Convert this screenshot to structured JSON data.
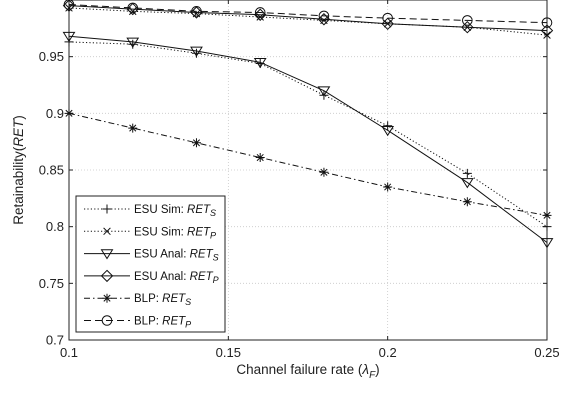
{
  "chart_data": {
    "type": "line",
    "xlabel": {
      "text": "Channel failure rate (",
      "sym": "λ",
      "sub": "F",
      "close": ")"
    },
    "ylabel": {
      "text": "Retainability(",
      "em": "RET",
      "close": ")"
    },
    "xlim": [
      0.1,
      0.25
    ],
    "ylim": [
      0.7,
      1.0
    ],
    "xticks": [
      0.1,
      0.15,
      0.2,
      0.25
    ],
    "xtick_labels": [
      "0.1",
      "0.15",
      "0.2",
      "0.25"
    ],
    "yticks": [
      0.7,
      0.75,
      0.8,
      0.85,
      0.9,
      0.95
    ],
    "ytick_labels": [
      "0.7",
      "0.75",
      "0.8",
      "0.85",
      "0.9",
      "0.95"
    ],
    "grid": true,
    "legend_position": "bottom-left",
    "series": [
      {
        "name": "ESU Sim: ",
        "em": "RET",
        "sub": "S",
        "marker": "plus",
        "dash": "1.2,2.2",
        "x": [
          0.1,
          0.12,
          0.14,
          0.16,
          0.18,
          0.2,
          0.225,
          0.25
        ],
        "y": [
          0.963,
          0.961,
          0.953,
          0.944,
          0.916,
          0.889,
          0.847,
          0.8
        ]
      },
      {
        "name": "ESU Sim: ",
        "em": "RET",
        "sub": "P",
        "marker": "x",
        "dash": "1.2,2.2",
        "x": [
          0.1,
          0.12,
          0.14,
          0.16,
          0.18,
          0.2,
          0.225,
          0.25
        ],
        "y": [
          0.993,
          0.99,
          0.988,
          0.985,
          0.982,
          0.979,
          0.976,
          0.969
        ]
      },
      {
        "name": "ESU Anal: ",
        "em": "RET",
        "sub": "S",
        "marker": "triangle-down",
        "dash": "",
        "x": [
          0.1,
          0.12,
          0.14,
          0.16,
          0.18,
          0.2,
          0.225,
          0.25
        ],
        "y": [
          0.968,
          0.963,
          0.955,
          0.945,
          0.92,
          0.885,
          0.839,
          0.786
        ]
      },
      {
        "name": "ESU Anal: ",
        "em": "RET",
        "sub": "P",
        "marker": "diamond",
        "dash": "",
        "x": [
          0.1,
          0.12,
          0.14,
          0.16,
          0.18,
          0.2,
          0.225,
          0.25
        ],
        "y": [
          0.995,
          0.992,
          0.989,
          0.987,
          0.983,
          0.979,
          0.976,
          0.973
        ]
      },
      {
        "name": "BLP: ",
        "em": "RET",
        "sub": "S",
        "marker": "asterisk",
        "dash": "6,3,1.5,3",
        "x": [
          0.1,
          0.12,
          0.14,
          0.16,
          0.18,
          0.2,
          0.225,
          0.25
        ],
        "y": [
          0.9,
          0.887,
          0.874,
          0.861,
          0.848,
          0.835,
          0.822,
          0.81
        ]
      },
      {
        "name": "BLP: ",
        "em": "RET",
        "sub": "P",
        "marker": "circle",
        "dash": "7,4",
        "x": [
          0.1,
          0.12,
          0.14,
          0.16,
          0.18,
          0.2,
          0.225,
          0.25
        ],
        "y": [
          0.996,
          0.993,
          0.99,
          0.989,
          0.986,
          0.984,
          0.982,
          0.98
        ]
      }
    ]
  }
}
